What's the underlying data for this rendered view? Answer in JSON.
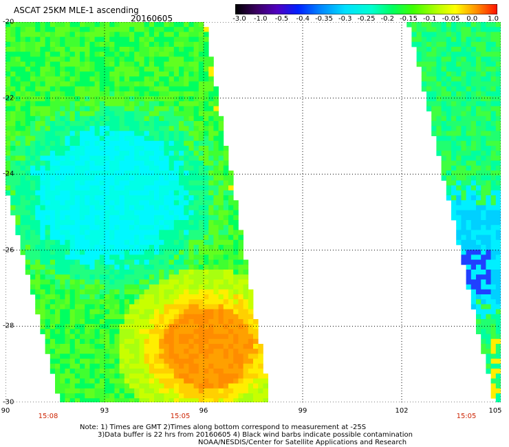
{
  "title": "ASCAT 25KM MLE-1 ascending",
  "date": "20160605",
  "colorbar": {
    "ticks": [
      "-3.0",
      "-1.0",
      "-0.5",
      "-0.4",
      "-0.35",
      "-0.3",
      "-0.25",
      "-0.2",
      "-0.15",
      "-0.1",
      "-0.05",
      "0.0",
      "1.0"
    ],
    "colors": [
      "#000000",
      "#5a0080",
      "#3000d0",
      "#0040ff",
      "#0090ff",
      "#00d8ff",
      "#00ffe0",
      "#00ff80",
      "#30ff00",
      "#a0ff00",
      "#ffff00",
      "#ffa000",
      "#ff2000"
    ]
  },
  "y_axis": {
    "tick_labels": [
      "-20",
      "-22",
      "-24",
      "-26",
      "-28",
      "-30"
    ],
    "range": [
      -30,
      -20
    ]
  },
  "x_axis": {
    "tick_labels": [
      "90",
      "93",
      "96",
      "99",
      "102",
      "105"
    ],
    "range": [
      90,
      105
    ]
  },
  "time_labels": [
    "15:08",
    "15:05",
    "15:05"
  ],
  "notes": [
    "Note: 1) Times are GMT 2)Times along bottom correspond to measurement at -25S",
    "3)Data buffer is 22 hrs from 20160605 4) Black wind barbs indicate possible contamination",
    "NOAA/NESDIS/Center for Satellite Applications and Research"
  ]
}
